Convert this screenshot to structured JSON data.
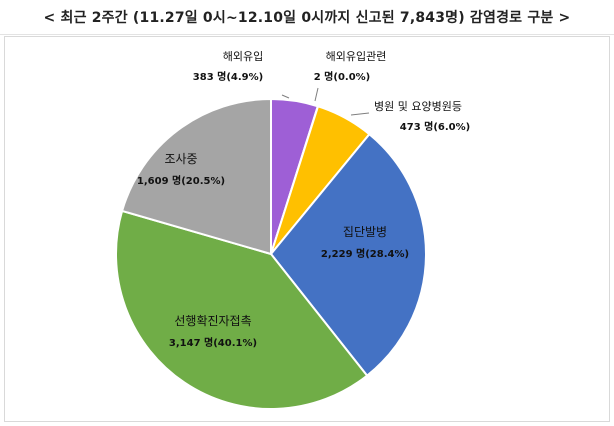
{
  "header": {
    "title": "< 최근 2주간 (11.27일 0시~12.10일 0시까지 신고된 7,843명) 감염경로 구분 >"
  },
  "chart_data": {
    "type": "pie",
    "title": "< 최근 2주간 (11.27일 0시~12.10일 0시까지 신고된 7,843명) 감염경로 구분 >",
    "start_angle_deg": 0,
    "direction": "clockwise",
    "slices": [
      {
        "name": "해외유입",
        "value": 383,
        "percent": 4.9,
        "color": "#9e5fd6",
        "value_label": "383 명(4.9%)"
      },
      {
        "name": "해외유입관련",
        "value": 2,
        "percent": 0.0,
        "color": "#2f8fd6",
        "value_label": "2 명(0.0%)"
      },
      {
        "name": "병원 및 요양병원등",
        "value": 473,
        "percent": 6.0,
        "color": "#ffc000",
        "value_label": "473 명(6.0%)"
      },
      {
        "name": "집단발병",
        "value": 2229,
        "percent": 28.4,
        "color": "#4472c4",
        "value_label": "2,229 명(28.4%)"
      },
      {
        "name": "선행확진자접촉",
        "value": 3147,
        "percent": 40.1,
        "color": "#70ad47",
        "value_label": "3,147 명(40.1%)"
      },
      {
        "name": "조사중",
        "value": 1609,
        "percent": 20.5,
        "color": "#a5a5a5",
        "value_label": "1,609 명(20.5%)"
      }
    ]
  }
}
